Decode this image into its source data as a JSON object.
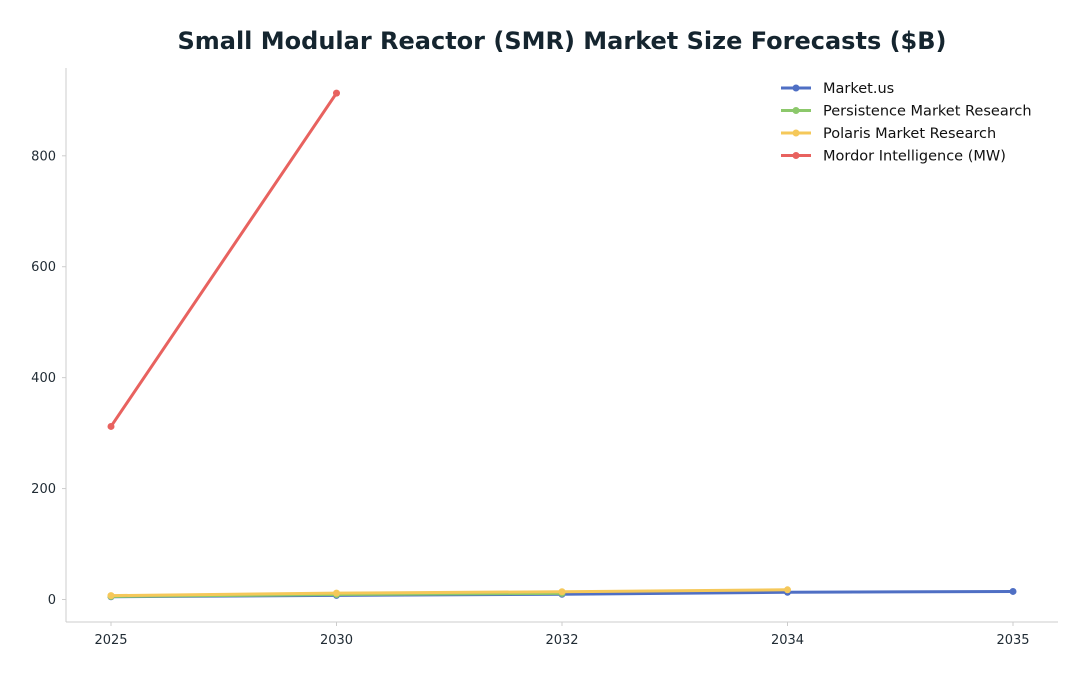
{
  "chart_data": {
    "type": "line",
    "title": "Small Modular Reactor (SMR) Market Size Forecasts ($B)",
    "xlabel": "",
    "ylabel": "",
    "x_ticks": [
      2025,
      2030,
      2032,
      2034,
      2035
    ],
    "y_ticks": [
      0,
      200,
      400,
      600,
      800
    ],
    "ylim": [
      -40,
      955
    ],
    "grid": false,
    "legend_position": "top-right",
    "series": [
      {
        "name": "Market.us",
        "color": "#4f6fc4",
        "points": [
          [
            2025,
            5.0
          ],
          [
            2030,
            7.5
          ],
          [
            2032,
            9.5
          ],
          [
            2034,
            13.0
          ],
          [
            2035,
            14.5
          ]
        ]
      },
      {
        "name": "Persistence Market Research",
        "color": "#8cc86b",
        "points": [
          [
            2025,
            5.5
          ],
          [
            2030,
            9.0
          ],
          [
            2032,
            11.0
          ]
        ]
      },
      {
        "name": "Polaris Market Research",
        "color": "#f5c85a",
        "points": [
          [
            2025,
            7.0
          ],
          [
            2030,
            11.5
          ],
          [
            2032,
            14.0
          ],
          [
            2034,
            17.5
          ]
        ]
      },
      {
        "name": "Mordor Intelligence (MW)",
        "color": "#e8625f",
        "points": [
          [
            2025,
            312
          ],
          [
            2030,
            913
          ]
        ]
      }
    ]
  }
}
